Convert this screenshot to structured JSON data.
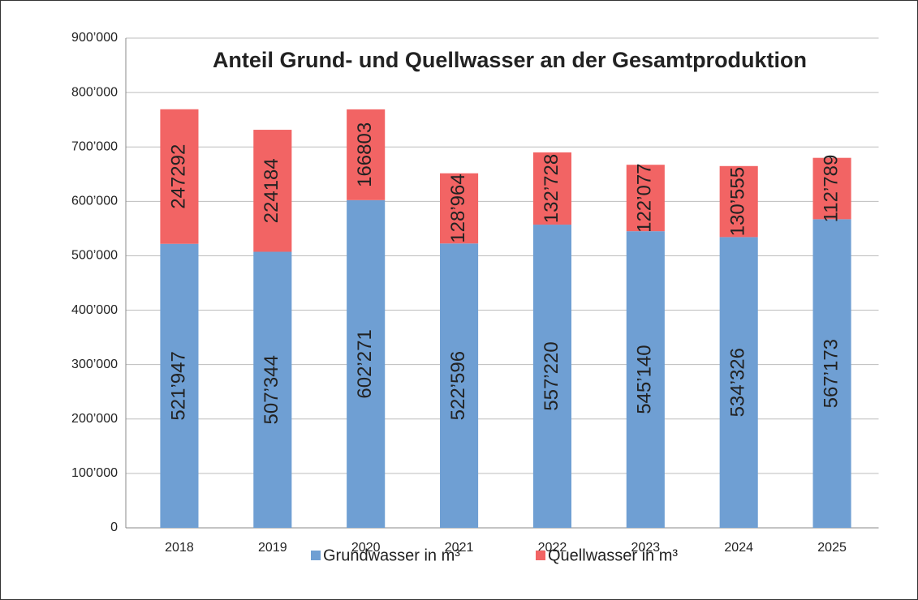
{
  "chart_data": {
    "type": "bar",
    "stacked": true,
    "title": "Anteil Grund- und Quellwasser an der Gesamtproduktion",
    "categories": [
      "2018",
      "2019",
      "2020",
      "2021",
      "2022",
      "2023",
      "2024",
      "2025"
    ],
    "series": [
      {
        "name": "Grundwasser in m³",
        "color": "#6f9fd3",
        "values": [
          521947,
          507344,
          602271,
          522596,
          557220,
          545140,
          534326,
          567173
        ],
        "value_labels": [
          "521’947",
          "507’344",
          "602’271",
          "522’596",
          "557’220",
          "545’140",
          "534’326",
          "567’173"
        ]
      },
      {
        "name": "Quellwasser in m³",
        "color": "#f26464",
        "values": [
          247292,
          224184,
          166803,
          128964,
          132728,
          122077,
          130555,
          112789
        ],
        "value_labels": [
          "247292",
          "224184",
          "166803",
          "128’964",
          "132’728",
          "122’077",
          "130’555",
          "112’789"
        ]
      }
    ],
    "ylim": [
      0,
      900000
    ],
    "yticks": [
      0,
      {
        "value": 100000,
        "label": "100’000"
      },
      {
        "value": 200000,
        "label": "200’000"
      },
      {
        "value": 300000,
        "label": "300’000"
      },
      {
        "value": 400000,
        "label": "400’000"
      },
      {
        "value": 500000,
        "label": "500’000"
      },
      {
        "value": 600000,
        "label": "600’000"
      },
      {
        "value": 700000,
        "label": "700’000"
      },
      {
        "value": 800000,
        "label": "800’000"
      },
      {
        "value": 900000,
        "label": "900’000"
      }
    ],
    "grid": true,
    "legend": "bottom"
  }
}
